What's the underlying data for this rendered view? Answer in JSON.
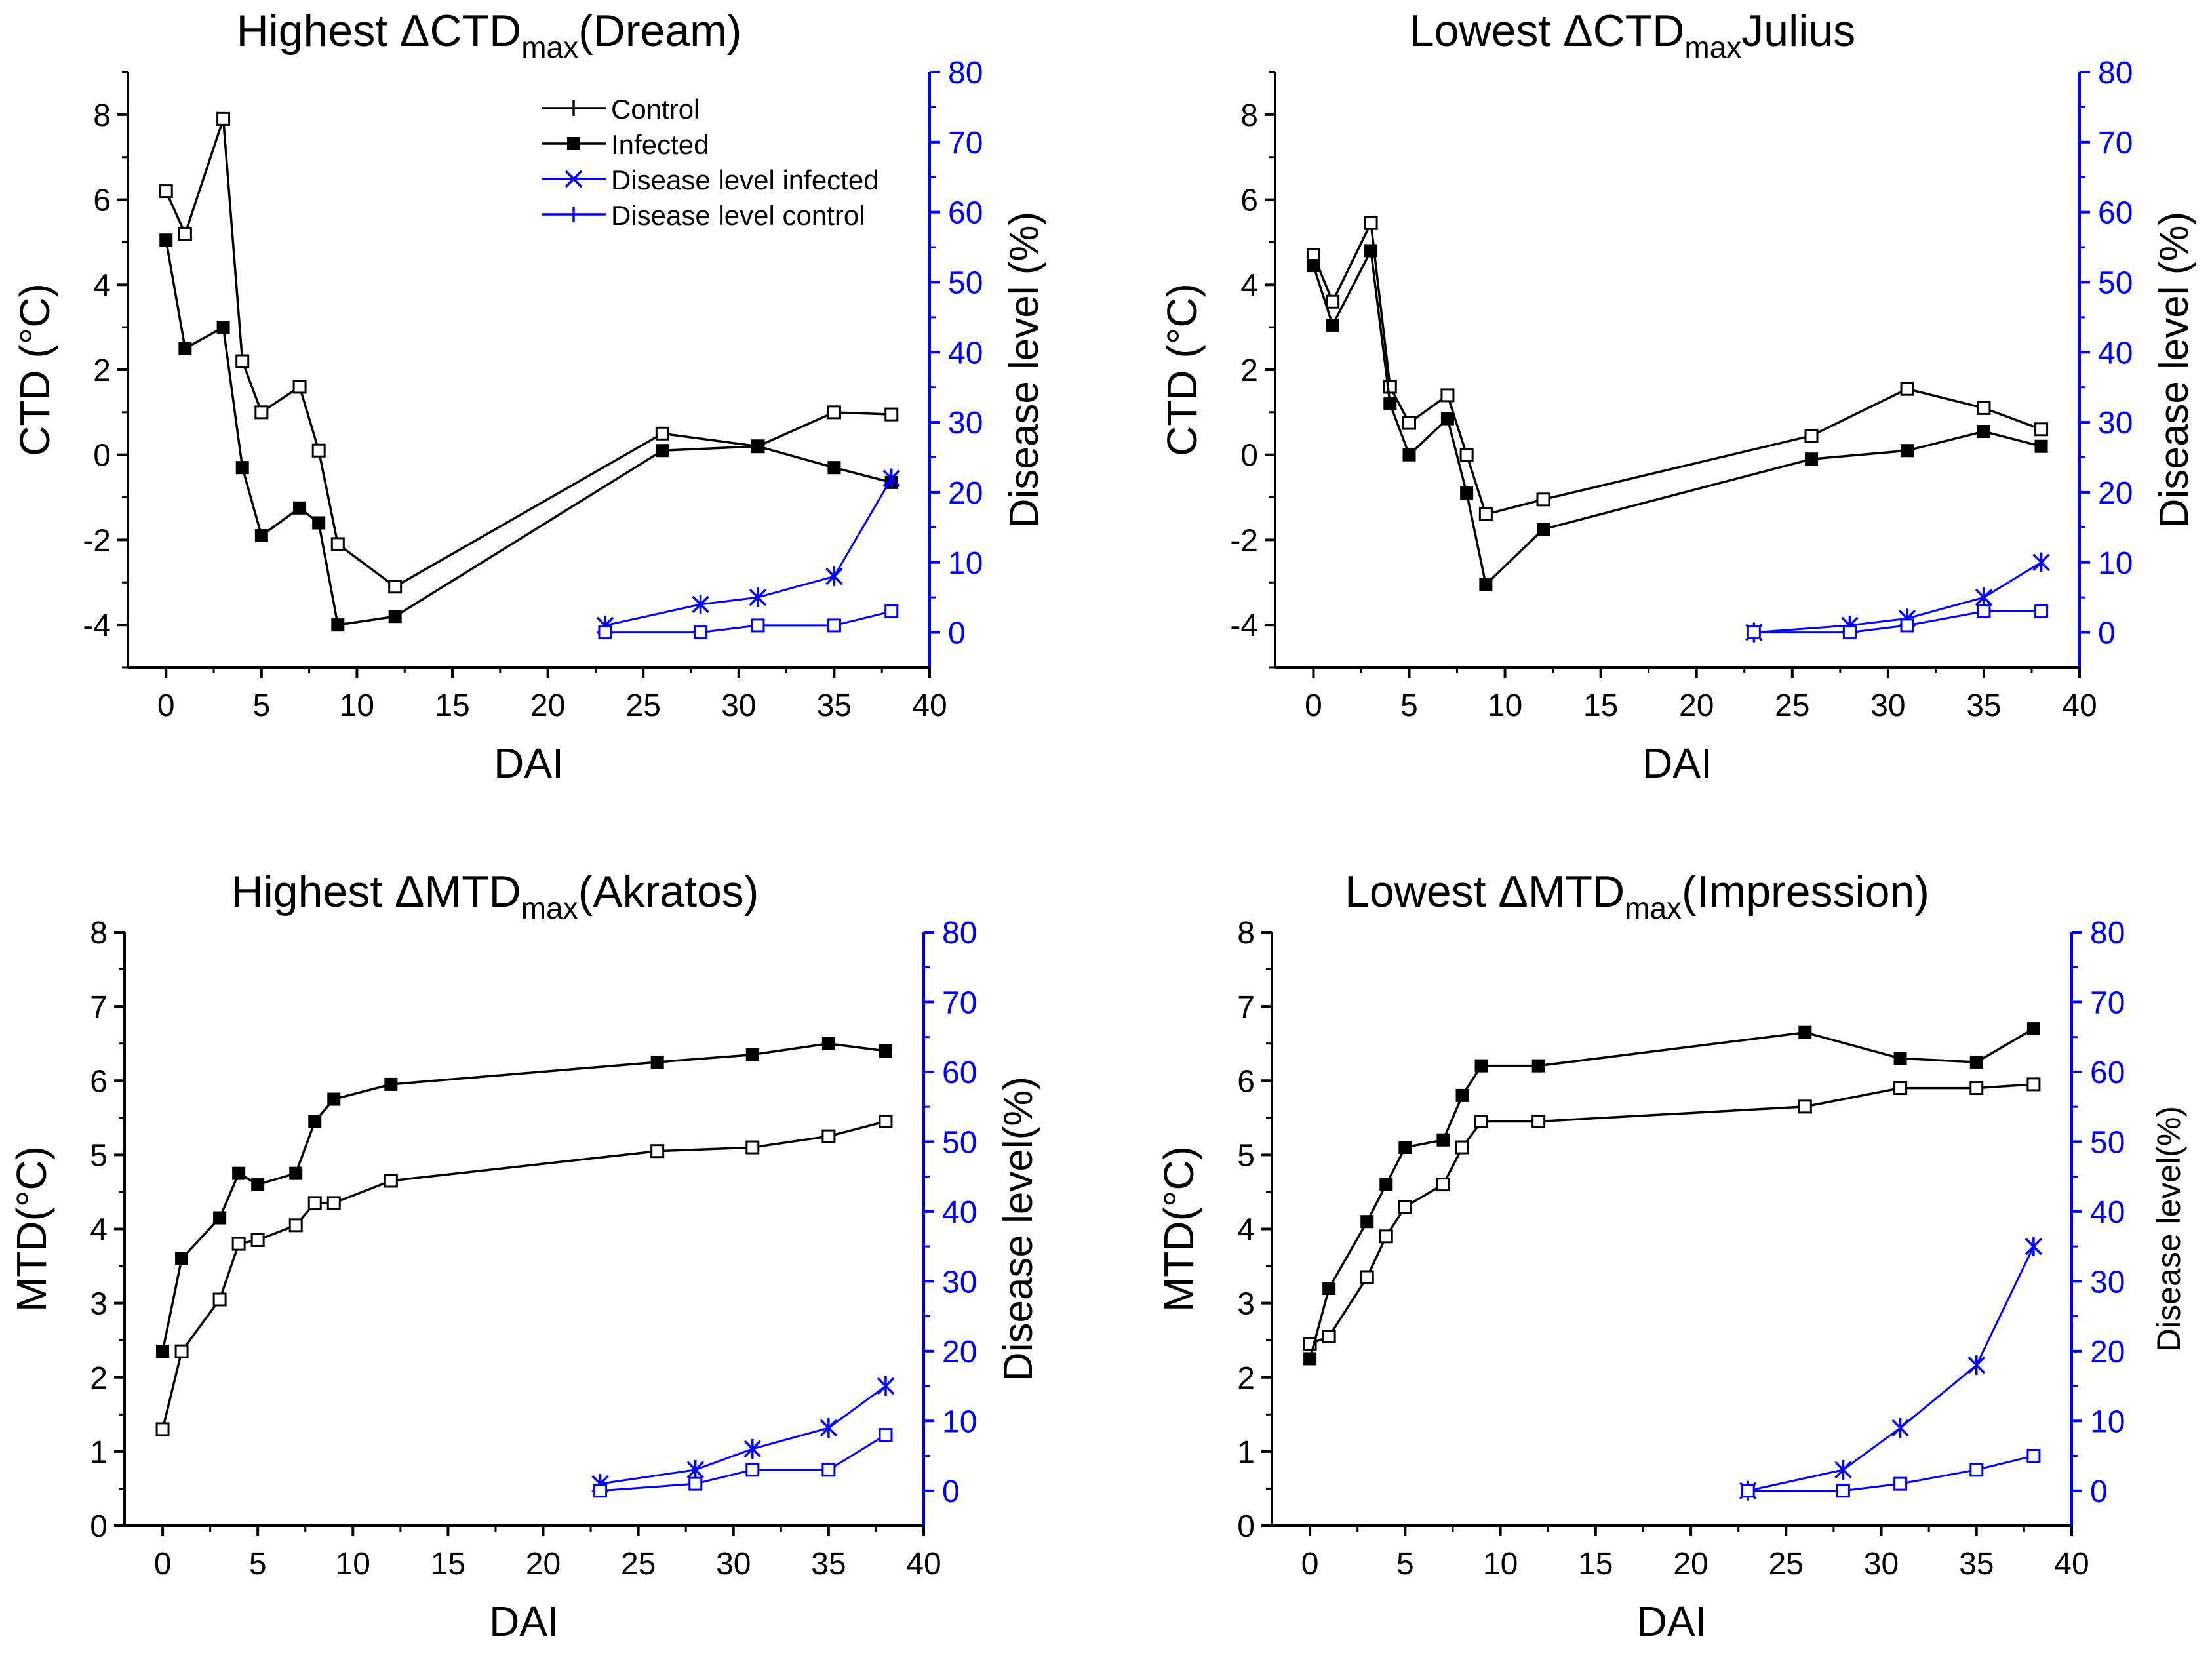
{
  "colors": {
    "axis_left": "#000000",
    "axis_right": "#0000ff",
    "control": "#000000",
    "infected": "#000000",
    "disease": "#0000ff"
  },
  "chart_data": [
    {
      "type": "line",
      "title": {
        "pre": "Highest ΔCTD",
        "sub": "max",
        "post": "(Dream)"
      },
      "xlabel": "DAI",
      "ylabel": "CTD (°C)",
      "y2label": "Disease level (%)",
      "xlim": [
        -2,
        40
      ],
      "xticks": [
        0,
        5,
        10,
        15,
        20,
        25,
        30,
        35,
        40
      ],
      "ylim": [
        -5,
        9
      ],
      "yticks": [
        -4,
        -2,
        0,
        2,
        4,
        6,
        8
      ],
      "y2lim": [
        -5,
        80
      ],
      "y2ticks": [
        0,
        10,
        20,
        30,
        40,
        50,
        60,
        70,
        80
      ],
      "legend": {
        "position": "top-center",
        "entries": [
          "Control",
          "Infected",
          "Disease level infected",
          "Disease level control"
        ]
      },
      "series": [
        {
          "name": "Control",
          "axis": "left",
          "marker": "open-square",
          "x": [
            0,
            1,
            3,
            4,
            5,
            7,
            8,
            9,
            12,
            26,
            31,
            35,
            38
          ],
          "y": [
            6.2,
            5.2,
            7.9,
            2.2,
            1.0,
            1.6,
            0.1,
            -2.1,
            -3.1,
            0.5,
            0.2,
            1.0,
            0.95
          ]
        },
        {
          "name": "Infected",
          "axis": "left",
          "marker": "filled-square",
          "x": [
            0,
            1,
            3,
            4,
            5,
            7,
            8,
            9,
            12,
            26,
            31,
            35,
            38
          ],
          "y": [
            5.05,
            2.5,
            3.0,
            -0.3,
            -1.9,
            -1.25,
            -1.6,
            -4.0,
            -3.8,
            0.1,
            0.2,
            -0.3,
            -0.65
          ]
        },
        {
          "name": "Disease level infected",
          "axis": "right",
          "marker": "star",
          "x": [
            23,
            28,
            31,
            35,
            38
          ],
          "y": [
            1,
            4,
            5,
            8,
            22
          ]
        },
        {
          "name": "Disease level control",
          "axis": "right",
          "marker": "open-square",
          "x": [
            23,
            28,
            31,
            35,
            38
          ],
          "y": [
            0,
            0,
            1,
            1,
            3
          ]
        }
      ]
    },
    {
      "type": "line",
      "title": {
        "pre": "Lowest ΔCTD",
        "sub": "max",
        "post": "Julius"
      },
      "xlabel": "DAI",
      "ylabel": "CTD (°C)",
      "y2label": "Disease level (%)",
      "xlim": [
        -2,
        40
      ],
      "xticks": [
        0,
        5,
        10,
        15,
        20,
        25,
        30,
        35,
        40
      ],
      "ylim": [
        -5,
        9
      ],
      "yticks": [
        -4,
        -2,
        0,
        2,
        4,
        6,
        8
      ],
      "y2lim": [
        -5,
        80
      ],
      "y2ticks": [
        0,
        10,
        20,
        30,
        40,
        50,
        60,
        70,
        80
      ],
      "series": [
        {
          "name": "Control",
          "axis": "left",
          "marker": "open-square",
          "x": [
            0,
            1,
            3,
            4,
            5,
            7,
            8,
            9,
            12,
            26,
            31,
            35,
            38
          ],
          "y": [
            4.7,
            3.6,
            5.45,
            1.6,
            0.75,
            1.4,
            0.0,
            -1.4,
            -1.05,
            0.45,
            1.55,
            1.1,
            0.6
          ]
        },
        {
          "name": "Infected",
          "axis": "left",
          "marker": "filled-square",
          "x": [
            0,
            1,
            3,
            4,
            5,
            7,
            8,
            9,
            12,
            26,
            31,
            35,
            38
          ],
          "y": [
            4.45,
            3.05,
            4.8,
            1.2,
            0.0,
            0.85,
            -0.9,
            -3.05,
            -1.75,
            -0.1,
            0.1,
            0.55,
            0.2
          ]
        },
        {
          "name": "Disease level infected",
          "axis": "right",
          "marker": "star",
          "x": [
            23,
            28,
            31,
            35,
            38
          ],
          "y": [
            0,
            1,
            2,
            5,
            10
          ]
        },
        {
          "name": "Disease level control",
          "axis": "right",
          "marker": "open-square",
          "x": [
            23,
            28,
            31,
            35,
            38
          ],
          "y": [
            0,
            0,
            1,
            3,
            3
          ]
        }
      ]
    },
    {
      "type": "line",
      "title": {
        "pre": "Highest ΔMTD",
        "sub": "max",
        "post": "(Akratos)"
      },
      "xlabel": "DAI",
      "ylabel": "MTD(°C)",
      "y2label": "Disease level(%)",
      "xlim": [
        -2,
        40
      ],
      "xticks": [
        0,
        5,
        10,
        15,
        20,
        25,
        30,
        35,
        40
      ],
      "ylim": [
        0,
        8
      ],
      "yticks": [
        0,
        1,
        2,
        3,
        4,
        5,
        6,
        7,
        8
      ],
      "y2lim": [
        -5,
        80
      ],
      "y2ticks": [
        0,
        10,
        20,
        30,
        40,
        50,
        60,
        70,
        80
      ],
      "series": [
        {
          "name": "Control",
          "axis": "left",
          "marker": "open-square",
          "x": [
            0,
            1,
            3,
            4,
            5,
            7,
            8,
            9,
            12,
            26,
            31,
            35,
            38
          ],
          "y": [
            1.3,
            2.35,
            3.05,
            3.8,
            3.85,
            4.05,
            4.35,
            4.35,
            4.65,
            5.05,
            5.1,
            5.25,
            5.45
          ]
        },
        {
          "name": "Infected",
          "axis": "left",
          "marker": "filled-square",
          "x": [
            0,
            1,
            3,
            4,
            5,
            7,
            8,
            9,
            12,
            26,
            31,
            35,
            38
          ],
          "y": [
            2.35,
            3.6,
            4.15,
            4.75,
            4.6,
            4.75,
            5.45,
            5.75,
            5.95,
            6.25,
            6.35,
            6.5,
            6.4
          ]
        },
        {
          "name": "Disease level infected",
          "axis": "right",
          "marker": "star",
          "x": [
            23,
            28,
            31,
            35,
            38
          ],
          "y": [
            1,
            3,
            6,
            9,
            15
          ]
        },
        {
          "name": "Disease level control",
          "axis": "right",
          "marker": "open-square",
          "x": [
            23,
            28,
            31,
            35,
            38
          ],
          "y": [
            0,
            1,
            3,
            3,
            8
          ]
        }
      ]
    },
    {
      "type": "line",
      "title": {
        "pre": "Lowest ΔMTD",
        "sub": "max",
        "post": "(Impression)"
      },
      "xlabel": "DAI",
      "ylabel": "MTD(°C)",
      "y2label": "Disease level(%)",
      "xlim": [
        -2,
        40
      ],
      "xticks": [
        0,
        5,
        10,
        15,
        20,
        25,
        30,
        35,
        40
      ],
      "ylim": [
        0,
        8
      ],
      "yticks": [
        0,
        1,
        2,
        3,
        4,
        5,
        6,
        7,
        8
      ],
      "y2lim": [
        -5,
        80
      ],
      "y2ticks": [
        0,
        10,
        20,
        30,
        40,
        50,
        60,
        70,
        80
      ],
      "series": [
        {
          "name": "Control",
          "axis": "left",
          "marker": "open-square",
          "x": [
            0,
            1,
            3,
            4,
            5,
            7,
            8,
            9,
            12,
            26,
            31,
            35,
            38
          ],
          "y": [
            2.45,
            2.55,
            3.35,
            3.9,
            4.3,
            4.6,
            5.1,
            5.45,
            5.45,
            5.65,
            5.9,
            5.9,
            5.95
          ]
        },
        {
          "name": "Infected",
          "axis": "left",
          "marker": "filled-square",
          "x": [
            0,
            1,
            3,
            4,
            5,
            7,
            8,
            9,
            12,
            26,
            31,
            35,
            38
          ],
          "y": [
            2.25,
            3.2,
            4.1,
            4.6,
            5.1,
            5.2,
            5.8,
            6.2,
            6.2,
            6.65,
            6.3,
            6.25,
            6.7
          ]
        },
        {
          "name": "Disease level infected",
          "axis": "right",
          "marker": "star",
          "x": [
            23,
            28,
            31,
            35,
            38
          ],
          "y": [
            0,
            3,
            9,
            18,
            35
          ]
        },
        {
          "name": "Disease level control",
          "axis": "right",
          "marker": "open-square",
          "x": [
            23,
            28,
            31,
            35,
            38
          ],
          "y": [
            0,
            0,
            1,
            3,
            5
          ]
        }
      ]
    }
  ]
}
